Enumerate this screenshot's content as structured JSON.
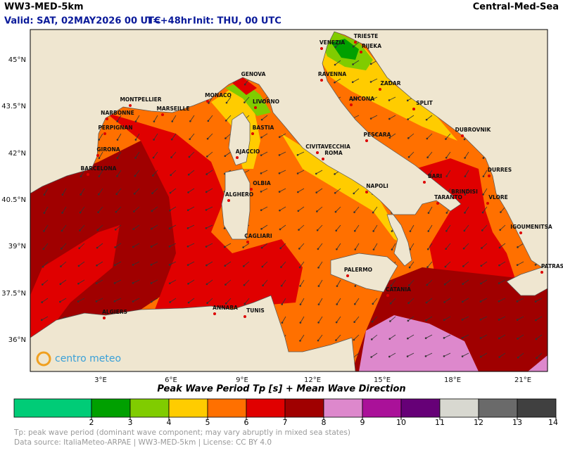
{
  "header": {
    "model": "WW3-MED-5km",
    "region": "Central-Med-Sea",
    "valid": "Valid: SAT, 02MAY2026 00 UTC",
    "lead": "T=+48hr",
    "init": "Init: THU, 00 UTC"
  },
  "map": {
    "lat_labels": [
      "45°N",
      "43.5°N",
      "42°N",
      "40.5°N",
      "39°N",
      "37.5°N",
      "36°N"
    ],
    "lon_labels": [
      "3°E",
      "6°E",
      "9°E",
      "12°E",
      "15°E",
      "18°E",
      "21°E"
    ],
    "cities": [
      "TRIESTE",
      "VENEZIA",
      "RIJEKA",
      "GENOVA",
      "RAVENNA",
      "ZADAR",
      "MONTPELLIER",
      "MONACO",
      "LIVORNO",
      "ANCONA",
      "SPLIT",
      "NARBONNE",
      "MARSEILLE",
      "PERPIGNAN",
      "BASTIA",
      "DUBROVNIK",
      "PESCARA",
      "CIVITAVECCHIA",
      "GIRONA",
      "AJACCIO",
      "ROMA",
      "BARCELONA",
      "DURRES",
      "OLBIA",
      "BARI",
      "NAPOLI",
      "BRINDISI",
      "ALGHERO",
      "TARANTO",
      "VLORE",
      "IGOUMENITSA",
      "CAGLIARI",
      "PATRAS",
      "PALERMO",
      "CATANIA",
      "ALGIERS",
      "ANNABA",
      "TUNIS"
    ],
    "logo": "centro meteo"
  },
  "legend": {
    "title": "Peak Wave Period Tp [s]  +  Mean Wave Direction",
    "ticks": [
      2,
      3,
      4,
      5,
      6,
      7,
      8,
      9,
      10,
      11,
      12,
      13,
      14
    ],
    "colors": [
      "#00cc77",
      "#00a000",
      "#80cc00",
      "#ffcc00",
      "#ff7000",
      "#e00000",
      "#a00000",
      "#dd88cc",
      "#aa1199",
      "#660077",
      "#d8d8d0",
      "#6a6a6a",
      "#404040"
    ]
  },
  "footer": {
    "note": "Tp: peak wave period (dominant wave component; may vary abruptly in mixed sea states)",
    "source": "Data source: ItaliaMeteo-ARPAE | WW3-MED-5km | License: CC BY 4.0"
  }
}
